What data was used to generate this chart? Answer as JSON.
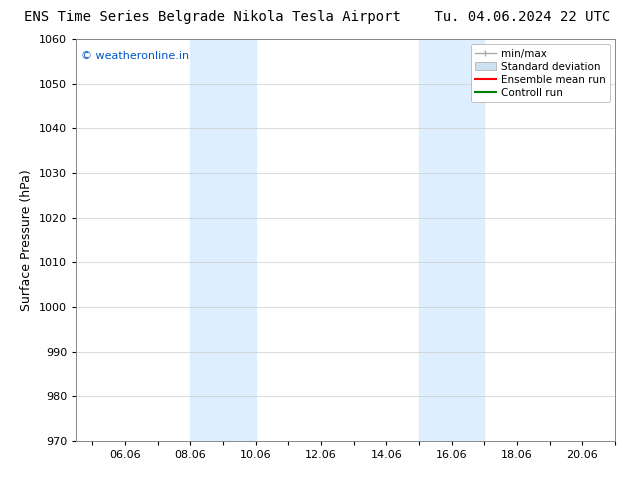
{
  "title_left": "ENS Time Series Belgrade Nikola Tesla Airport",
  "title_right": "Tu. 04.06.2024 22 UTC",
  "ylabel": "Surface Pressure (hPa)",
  "xlabel": "",
  "watermark": "© weatheronline.in",
  "watermark_color": "#0055cc",
  "xlim": [
    4.5,
    21.0
  ],
  "ylim": [
    970,
    1060
  ],
  "yticks": [
    970,
    980,
    990,
    1000,
    1010,
    1020,
    1030,
    1040,
    1050,
    1060
  ],
  "xticks": [
    5.0,
    6.0,
    7.0,
    8.0,
    9.0,
    10.0,
    11.0,
    12.0,
    13.0,
    14.0,
    15.0,
    16.0,
    17.0,
    18.0,
    19.0,
    20.0,
    21.0
  ],
  "xtick_labels": [
    "",
    "06.06",
    "",
    "08.06",
    "",
    "10.06",
    "",
    "12.06",
    "",
    "14.06",
    "",
    "16.06",
    "",
    "18.06",
    "",
    "20.06",
    ""
  ],
  "shaded_bands": [
    {
      "xmin": 8.0,
      "xmax": 10.0,
      "color": "#ddeeff"
    },
    {
      "xmin": 15.0,
      "xmax": 17.0,
      "color": "#ddeeff"
    }
  ],
  "legend_entries": [
    {
      "label": "min/max",
      "color": "#aaaaaa",
      "type": "errorbar"
    },
    {
      "label": "Standard deviation",
      "color": "#cce0f0",
      "type": "band"
    },
    {
      "label": "Ensemble mean run",
      "color": "#ff0000",
      "type": "line"
    },
    {
      "label": "Controll run",
      "color": "#008000",
      "type": "line"
    }
  ],
  "bg_color": "#ffffff",
  "plot_bg_color": "#ffffff",
  "grid_color": "#cccccc",
  "title_fontsize": 10,
  "label_fontsize": 9,
  "tick_fontsize": 8,
  "legend_fontsize": 7.5
}
